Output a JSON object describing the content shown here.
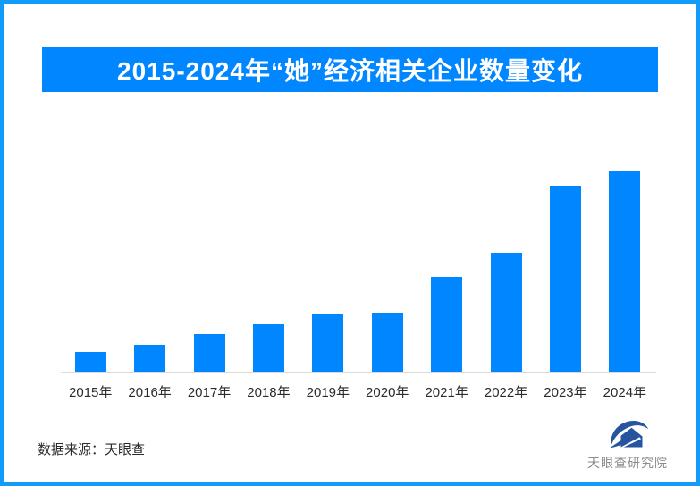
{
  "frame": {
    "border_color": "#129BF8",
    "background_color": "#ffffff"
  },
  "header": {
    "title": "2015-2024年“她”经济相关企业数量变化",
    "bg_color": "#0086FF",
    "text_color": "#ffffff"
  },
  "chart_data": {
    "type": "bar",
    "title": "2015-2024年“她”经济相关企业数量变化",
    "categories": [
      "2015年",
      "2016年",
      "2017年",
      "2018年",
      "2019年",
      "2020年",
      "2021年",
      "2022年",
      "2023年",
      "2024年"
    ],
    "values": [
      9.8,
      13.5,
      18.5,
      23.5,
      28.9,
      29.5,
      47.2,
      59.0,
      92.4,
      100
    ],
    "xlabel": "",
    "ylabel": "",
    "ylim": [
      0,
      100
    ],
    "grid": false,
    "legend": "none",
    "yaxis_shown": false,
    "value_labels_shown": false,
    "bar_color": "#0086FF",
    "axis_line_color": "#dcdcdc",
    "note": "No numeric y-axis or data labels are shown in the image; values are relative bar heights normalized so 2024 = 100."
  },
  "footer": {
    "source_label": "数据来源：天眼查",
    "logo_text": "天眼查研究院",
    "logo_icon": "tianyancha-eye-icon",
    "logo_icon_color": "#26549E",
    "logo_text_color": "#8a8a8a"
  }
}
